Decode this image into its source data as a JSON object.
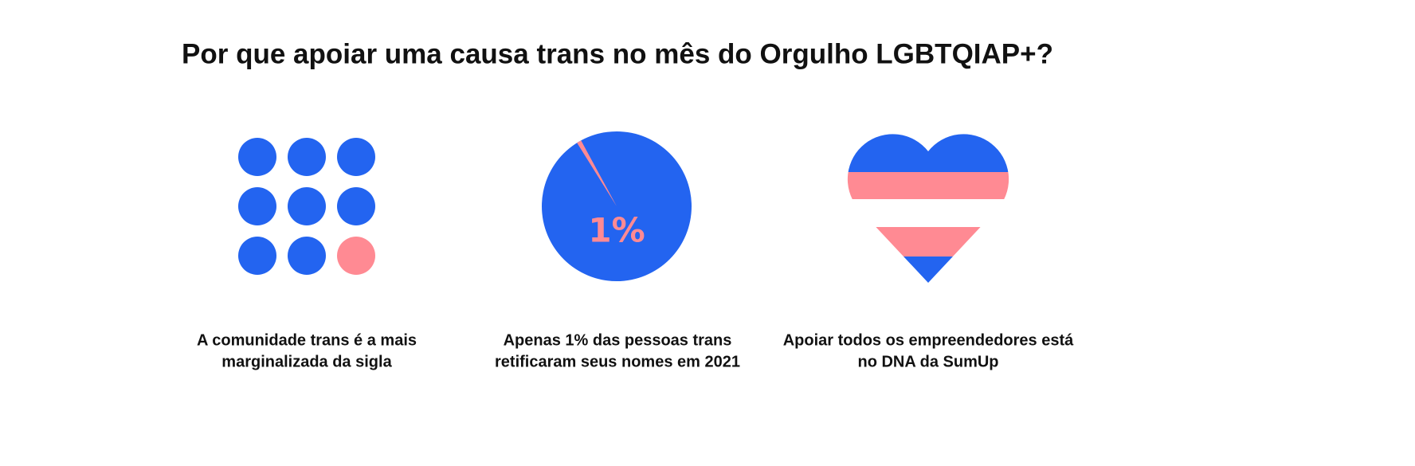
{
  "title": "Por que apoiar uma causa trans no mês do Orgulho LGBTQIAP+?",
  "cards": [
    {
      "caption": [
        "A comunidade trans é a mais",
        "marginalizada da sigla"
      ]
    },
    {
      "pie": {
        "value": 1,
        "label": "1%"
      },
      "caption": [
        "Apenas 1% das pessoas trans",
        "retificaram seus nomes em 2021"
      ]
    },
    {
      "caption": [
        "Apoiar todos os empreendedores está",
        "no DNA da SumUp"
      ]
    }
  ]
}
